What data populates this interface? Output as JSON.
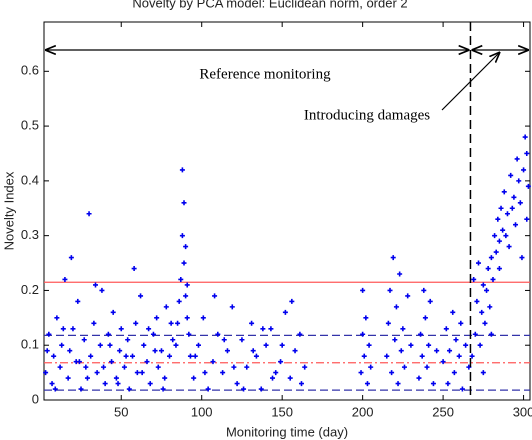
{
  "chart_data": {
    "type": "scatter",
    "title": "Novelty by PCA model: Euclidean norm, order 2",
    "x_label": "Monitoring time (day)",
    "y_label": "Novelty Index",
    "annotations": [
      "Reference monitoring",
      "Introducing damages"
    ],
    "xlim": [
      2,
      304
    ],
    "ylim": [
      0,
      0.69
    ],
    "xticks": [
      50,
      100,
      150,
      200,
      250,
      300
    ],
    "yticks": [
      0,
      0.1,
      0.2,
      0.3,
      0.4,
      0.5,
      0.6
    ],
    "hlines": [
      {
        "y": 0.215,
        "color": "#ff5a5a",
        "dash": "none"
      },
      {
        "y": 0.068,
        "color": "#ff5a5a",
        "dash": "8 3 2 3"
      },
      {
        "y": 0.118,
        "color": "#3333aa",
        "dash": "8 4"
      },
      {
        "y": 0.018,
        "color": "#3333aa",
        "dash": "8 4"
      }
    ],
    "vline": {
      "x": 267,
      "color": "#000000"
    },
    "series": [
      {
        "color": "#0000ee",
        "x": [
          3,
          5,
          7,
          8,
          10,
          12,
          13,
          15,
          17,
          18,
          20,
          22,
          23,
          25,
          27,
          28,
          30,
          31,
          33,
          35,
          37,
          38,
          40,
          42,
          44,
          45,
          47,
          49,
          50,
          52,
          54,
          55,
          57,
          59,
          60,
          62,
          64,
          66,
          68,
          70,
          72,
          73,
          75,
          77,
          78,
          80,
          82,
          4,
          9,
          14,
          19,
          24,
          29,
          34,
          39,
          43,
          48,
          53,
          58,
          63,
          67,
          71,
          76,
          81,
          84,
          85,
          86,
          87,
          88,
          88,
          89,
          89,
          90,
          90,
          91,
          91,
          92,
          93,
          95,
          98,
          101,
          104,
          107,
          110,
          113,
          116,
          119,
          122,
          125,
          128,
          131,
          134,
          137,
          140,
          143,
          146,
          149,
          152,
          155,
          158,
          161,
          164,
          96,
          102,
          108,
          114,
          120,
          126,
          132,
          138,
          144,
          150,
          156,
          162,
          199,
          200,
          200,
          201,
          202,
          203,
          204,
          205,
          215,
          216,
          217,
          218,
          219,
          220,
          221,
          222,
          223,
          224,
          225,
          226,
          228,
          230,
          235,
          236,
          237,
          238,
          239,
          240,
          241,
          242,
          244,
          246,
          250,
          252,
          253,
          254,
          256,
          257,
          258,
          260,
          261,
          262,
          264,
          266,
          268,
          269,
          270,
          271,
          272,
          273,
          274,
          275,
          276,
          277,
          278,
          279,
          280,
          281,
          282,
          283,
          284,
          285,
          286,
          287,
          288,
          290,
          292,
          294,
          296,
          298,
          300,
          301,
          302,
          303,
          275,
          280,
          285,
          289,
          291,
          293,
          295,
          297,
          299,
          302
        ],
        "y": [
          0.05,
          0.12,
          0.03,
          0.08,
          0.15,
          0.06,
          0.1,
          0.22,
          0.04,
          0.09,
          0.13,
          0.07,
          0.18,
          0.02,
          0.11,
          0.06,
          0.34,
          0.08,
          0.14,
          0.05,
          0.1,
          0.2,
          0.03,
          0.12,
          0.07,
          0.16,
          0.04,
          0.09,
          0.13,
          0.06,
          0.11,
          0.02,
          0.08,
          0.14,
          0.05,
          0.19,
          0.1,
          0.07,
          0.03,
          0.12,
          0.15,
          0.06,
          0.09,
          0.04,
          0.17,
          0.08,
          0.11,
          0.09,
          0.02,
          0.13,
          0.26,
          0.07,
          0.04,
          0.21,
          0.06,
          0.1,
          0.03,
          0.08,
          0.24,
          0.05,
          0.13,
          0.09,
          0.02,
          0.14,
          0.1,
          0.14,
          0.18,
          0.22,
          0.3,
          0.42,
          0.36,
          0.25,
          0.28,
          0.19,
          0.21,
          0.15,
          0.12,
          0.08,
          0.04,
          0.1,
          0.15,
          0.02,
          0.07,
          0.12,
          0.05,
          0.09,
          0.17,
          0.03,
          0.11,
          0.06,
          0.14,
          0.08,
          0.02,
          0.1,
          0.13,
          0.05,
          0.07,
          0.16,
          0.04,
          0.09,
          0.12,
          0.06,
          0.08,
          0.05,
          0.19,
          0.11,
          0.06,
          0.02,
          0.09,
          0.13,
          0.04,
          0.1,
          0.18,
          0.03,
          0.05,
          0.12,
          0.2,
          0.08,
          0.15,
          0.03,
          0.1,
          0.06,
          0.08,
          0.14,
          0.2,
          0.05,
          0.26,
          0.11,
          0.17,
          0.03,
          0.23,
          0.09,
          0.13,
          0.06,
          0.19,
          0.1,
          0.04,
          0.12,
          0.08,
          0.2,
          0.15,
          0.06,
          0.1,
          0.18,
          0.03,
          0.09,
          0.07,
          0.13,
          0.03,
          0.09,
          0.16,
          0.05,
          0.11,
          0.08,
          0.14,
          0.02,
          0.1,
          0.06,
          0.08,
          0.22,
          0.12,
          0.18,
          0.25,
          0.1,
          0.16,
          0.21,
          0.14,
          0.2,
          0.24,
          0.17,
          0.26,
          0.22,
          0.3,
          0.27,
          0.33,
          0.29,
          0.35,
          0.31,
          0.38,
          0.34,
          0.41,
          0.37,
          0.44,
          0.36,
          0.42,
          0.48,
          0.33,
          0.39,
          0.05,
          0.12,
          0.24,
          0.3,
          0.28,
          0.35,
          0.32,
          0.4,
          0.26,
          0.45
        ]
      }
    ]
  }
}
